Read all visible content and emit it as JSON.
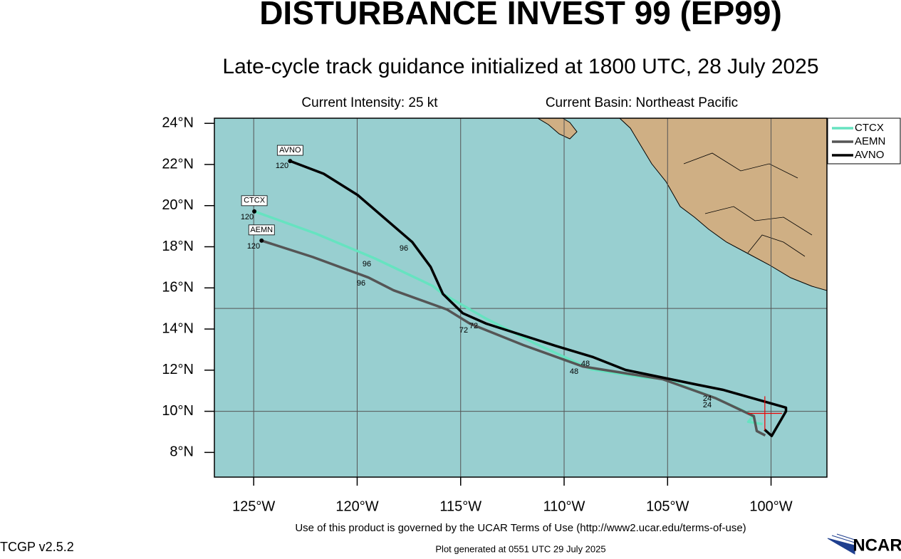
{
  "chart_data": {
    "type": "line",
    "title": "DISTURBANCE INVEST 99 (EP99)",
    "subtitle": "Late-cycle track guidance initialized at 1800 UTC, 28 July 2025",
    "intensity": "Current Intensity: 25 kt",
    "basin": "Current Basin: Northeast Pacific",
    "footer": "Use of this product is governed by the UCAR Terms of Use (http://www2.ucar.edu/terms-of-use)",
    "version": "TCGP v2.5.2",
    "generated": "Plot generated at 0551 UTC   29 July 2025",
    "logo": "NCAR",
    "xlim": [
      -126.9,
      -97.3
    ],
    "ylim": [
      6.8,
      24.25
    ],
    "xticks": [
      {
        "value": -125,
        "label": "125°W"
      },
      {
        "value": -120,
        "label": "120°W"
      },
      {
        "value": -115,
        "label": "115°W"
      },
      {
        "value": -110,
        "label": "110°W"
      },
      {
        "value": -105,
        "label": "105°W"
      },
      {
        "value": -100,
        "label": "100°W"
      }
    ],
    "yticks": [
      {
        "value": 8,
        "label": "8°N"
      },
      {
        "value": 10,
        "label": "10°N"
      },
      {
        "value": 12,
        "label": "12°N"
      },
      {
        "value": 14,
        "label": "14°N"
      },
      {
        "value": 16,
        "label": "16°N"
      },
      {
        "value": 18,
        "label": "18°N"
      },
      {
        "value": 20,
        "label": "20°N"
      },
      {
        "value": 22,
        "label": "22°N"
      },
      {
        "value": 24,
        "label": "24°N"
      }
    ],
    "ygrid": [
      10,
      15
    ],
    "initial_position": {
      "lon": -100.3,
      "lat": 9.9
    },
    "legend": "upper right",
    "series": [
      {
        "name": "CTCX",
        "color": "#66e3c0",
        "x": [
          -100.41,
          -101.1,
          -100.83,
          -102.66,
          -105.17,
          -106.03,
          -108.69,
          -111.45,
          -113.76,
          -115.86,
          -116.34,
          -119.14,
          -122.0,
          -124.97
        ],
        "values": [
          9.38,
          9.49,
          9.79,
          10.63,
          11.59,
          11.63,
          12.04,
          13.32,
          14.5,
          15.71,
          16.09,
          17.43,
          18.64,
          19.72
        ]
      },
      {
        "name": "AEMN",
        "color": "#555555",
        "x": [
          -100.28,
          -100.69,
          -100.83,
          -102.66,
          -105.24,
          -109.1,
          -111.97,
          -114.55,
          -115.66,
          -118.24,
          -119.45,
          -122.14,
          -124.62
        ],
        "values": [
          8.83,
          9.04,
          9.76,
          10.63,
          11.56,
          12.18,
          13.22,
          14.26,
          14.95,
          15.88,
          16.5,
          17.5,
          18.3
        ]
      },
      {
        "name": "AVNO",
        "color": "#000000",
        "x": [
          -100.31,
          -99.97,
          -99.28,
          -99.28,
          -102.31,
          -103.69,
          -107.03,
          -108.59,
          -110.41,
          -113.76,
          -114.9,
          -115.86,
          -116.45,
          -117.34,
          -119.97,
          -121.62,
          -123.24
        ],
        "values": [
          9.11,
          8.8,
          10.0,
          10.18,
          11.04,
          11.32,
          12.01,
          12.63,
          13.18,
          14.26,
          14.77,
          15.71,
          17.02,
          18.23,
          20.51,
          21.55,
          22.17
        ]
      }
    ],
    "hour_labels": [
      "120",
      "120",
      "120",
      "96",
      "96",
      "96",
      "72",
      "72",
      "48",
      "48",
      "24",
      "24"
    ]
  }
}
